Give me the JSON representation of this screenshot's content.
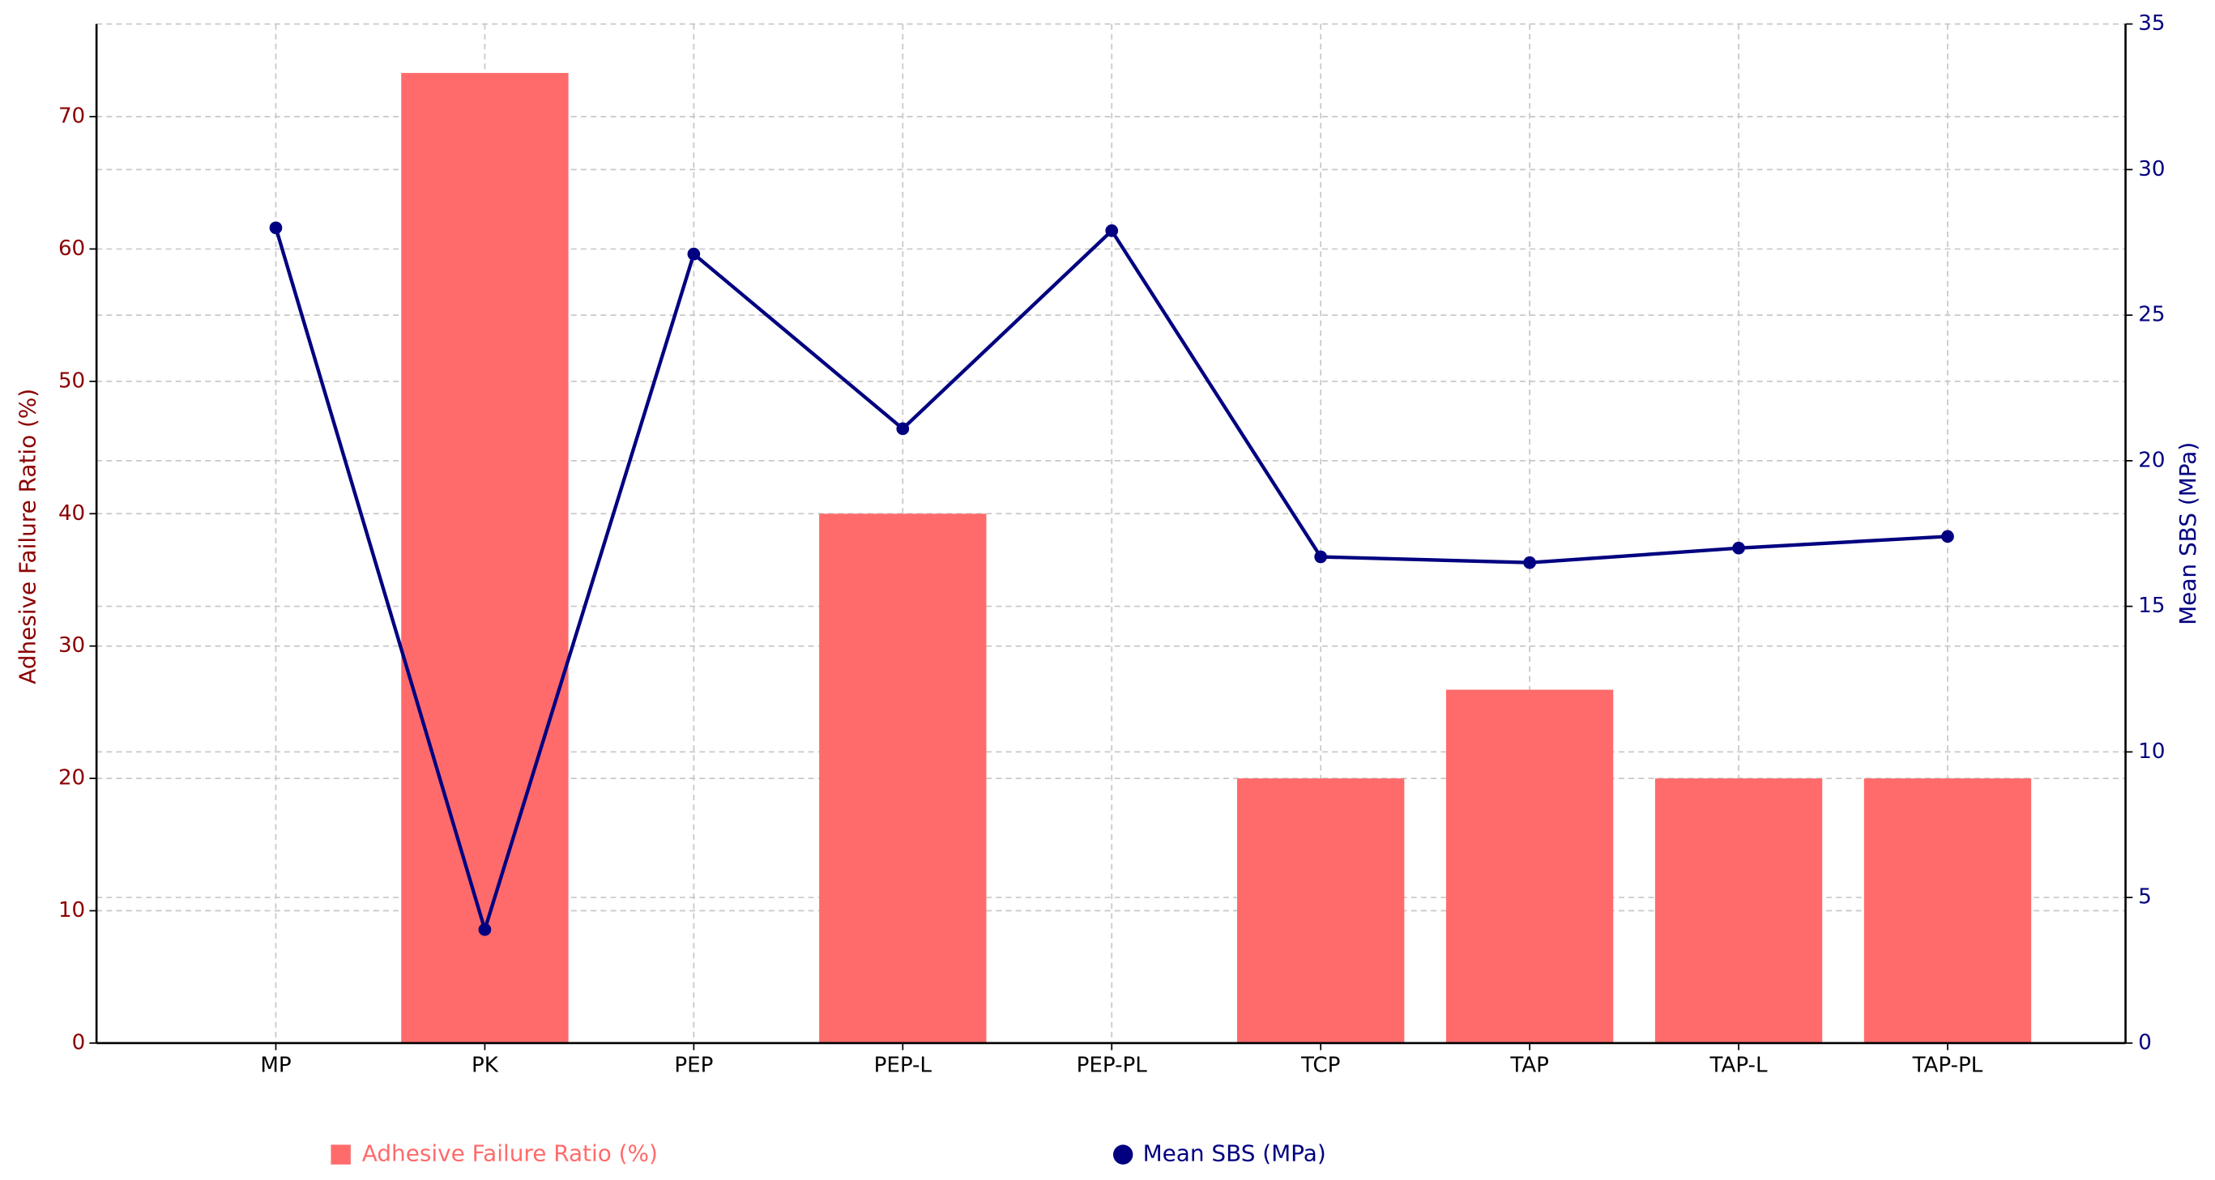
{
  "chart_data": {
    "type": "bar",
    "categories": [
      "MP",
      "PK",
      "PEP",
      "PEP-L",
      "PEP-PL",
      "TCP",
      "TAP",
      "TAP-L",
      "TAP-PL"
    ],
    "series": [
      {
        "name": "Adhesive Failure Ratio (%)",
        "color": "#ff6b6b",
        "values": [
          0,
          73.3,
          0,
          40,
          0,
          20,
          26.7,
          20,
          20
        ]
      },
      {
        "name": "Mean SBS (MPa)",
        "color": "#000080",
        "type": "line",
        "axis": "y2",
        "values": [
          28,
          3.9,
          27.1,
          21.1,
          27.9,
          16.7,
          16.5,
          17.0,
          17.4
        ]
      }
    ],
    "ylabel": "Adhesive Failure Ratio (%)",
    "y2label": "Mean SBS (MPa)",
    "ylim": [
      0,
      77
    ],
    "yticks": [
      0,
      10,
      20,
      30,
      40,
      50,
      60,
      70
    ],
    "y2lim": [
      0,
      35
    ],
    "y2ticks": [
      0,
      5,
      10,
      15,
      20,
      25,
      30,
      35
    ],
    "grid": true
  }
}
